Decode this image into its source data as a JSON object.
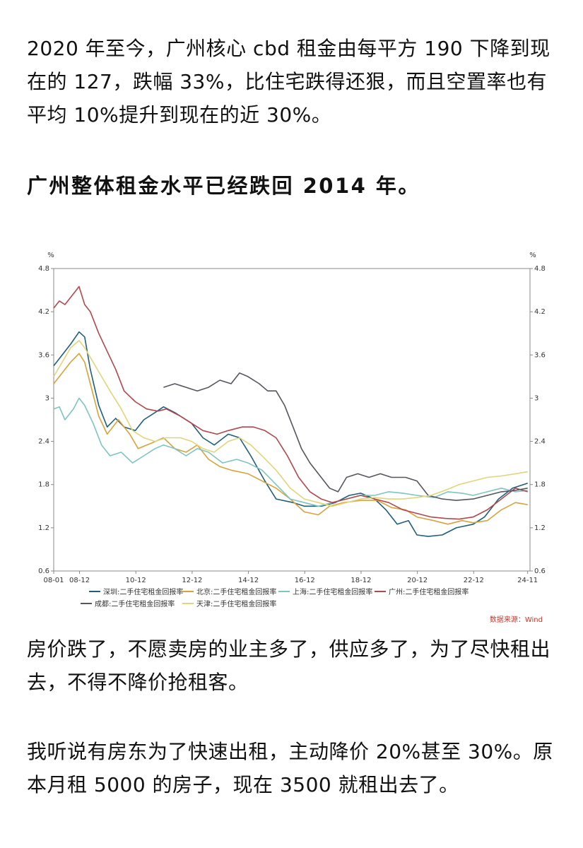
{
  "article": {
    "paragraph1": "2020 年至今，广州核心 cbd 租金由每平方 190 下降到现在的 127，跌幅 33%，比住宅跌得还狠，而且空置率也有平均 10%提升到现在的近 30%。",
    "heading": "广州整体租金水平已经跌回 2014 年。",
    "paragraph2": "房价跌了，不愿卖房的业主多了，供应多了，为了尽快租出去，不得不降价抢租客。",
    "paragraph3": "我听说有房东为了快速出租，主动降价 20%甚至 30%。原本月租 5000 的房子，现在 3500 就租出去了。"
  },
  "chart_data": {
    "type": "line",
    "y_unit_left": "%",
    "y_unit_right": "%",
    "ylim": [
      0.6,
      4.8
    ],
    "yticks": [
      "4.8",
      "4.2",
      "3.6",
      "3",
      "2.4",
      "1.8",
      "1.2",
      "0.6"
    ],
    "x_range": [
      2008.0,
      2024.917
    ],
    "xticks": [
      {
        "label": "08-01",
        "x": 2008.0
      },
      {
        "label": "08-12",
        "x": 2008.917
      },
      {
        "label": "10-12",
        "x": 2010.917
      },
      {
        "label": "12-12",
        "x": 2012.917
      },
      {
        "label": "14-12",
        "x": 2014.917
      },
      {
        "label": "16-12",
        "x": 2016.917
      },
      {
        "label": "18-12",
        "x": 2018.917
      },
      {
        "label": "20-12",
        "x": 2020.917
      },
      {
        "label": "22-12",
        "x": 2022.917
      },
      {
        "label": "24-11",
        "x": 2024.833
      }
    ],
    "grid": false,
    "legend_position": "bottom",
    "source": "数据来源：Wind",
    "series": [
      {
        "name": "深圳:二手住宅租金回报率",
        "color": "#1f5f7a",
        "points": [
          [
            2008.0,
            3.45
          ],
          [
            2008.3,
            3.6
          ],
          [
            2008.6,
            3.75
          ],
          [
            2008.9,
            3.92
          ],
          [
            2009.1,
            3.85
          ],
          [
            2009.3,
            3.4
          ],
          [
            2009.6,
            2.9
          ],
          [
            2009.9,
            2.6
          ],
          [
            2010.2,
            2.72
          ],
          [
            2010.5,
            2.6
          ],
          [
            2010.9,
            2.55
          ],
          [
            2011.2,
            2.7
          ],
          [
            2011.6,
            2.8
          ],
          [
            2011.9,
            2.88
          ],
          [
            2012.3,
            2.8
          ],
          [
            2012.9,
            2.65
          ],
          [
            2013.3,
            2.45
          ],
          [
            2013.7,
            2.35
          ],
          [
            2014.2,
            2.5
          ],
          [
            2014.6,
            2.45
          ],
          [
            2015.0,
            2.2
          ],
          [
            2015.5,
            1.85
          ],
          [
            2015.9,
            1.6
          ],
          [
            2016.5,
            1.55
          ],
          [
            2016.9,
            1.5
          ],
          [
            2017.5,
            1.5
          ],
          [
            2018.0,
            1.55
          ],
          [
            2018.5,
            1.65
          ],
          [
            2018.9,
            1.68
          ],
          [
            2019.4,
            1.6
          ],
          [
            2019.8,
            1.45
          ],
          [
            2020.2,
            1.25
          ],
          [
            2020.6,
            1.3
          ],
          [
            2020.9,
            1.1
          ],
          [
            2021.3,
            1.08
          ],
          [
            2021.8,
            1.1
          ],
          [
            2022.3,
            1.2
          ],
          [
            2022.9,
            1.25
          ],
          [
            2023.3,
            1.35
          ],
          [
            2023.8,
            1.6
          ],
          [
            2024.3,
            1.75
          ],
          [
            2024.833,
            1.82
          ]
        ]
      },
      {
        "name": "北京:二手住宅租金回报率",
        "color": "#d9a23a",
        "points": [
          [
            2008.0,
            3.2
          ],
          [
            2008.3,
            3.35
          ],
          [
            2008.6,
            3.5
          ],
          [
            2008.9,
            3.62
          ],
          [
            2009.1,
            3.5
          ],
          [
            2009.3,
            3.2
          ],
          [
            2009.6,
            2.75
          ],
          [
            2009.9,
            2.5
          ],
          [
            2010.3,
            2.7
          ],
          [
            2010.7,
            2.5
          ],
          [
            2011.0,
            2.3
          ],
          [
            2011.5,
            2.38
          ],
          [
            2011.9,
            2.45
          ],
          [
            2012.3,
            2.3
          ],
          [
            2012.7,
            2.25
          ],
          [
            2013.1,
            2.35
          ],
          [
            2013.5,
            2.15
          ],
          [
            2013.9,
            2.05
          ],
          [
            2014.3,
            2.0
          ],
          [
            2014.9,
            1.95
          ],
          [
            2015.4,
            1.85
          ],
          [
            2015.9,
            1.75
          ],
          [
            2016.4,
            1.6
          ],
          [
            2016.9,
            1.42
          ],
          [
            2017.4,
            1.38
          ],
          [
            2017.8,
            1.5
          ],
          [
            2018.3,
            1.55
          ],
          [
            2018.9,
            1.58
          ],
          [
            2019.5,
            1.58
          ],
          [
            2020.0,
            1.48
          ],
          [
            2020.5,
            1.45
          ],
          [
            2020.9,
            1.35
          ],
          [
            2021.5,
            1.3
          ],
          [
            2022.0,
            1.25
          ],
          [
            2022.5,
            1.3
          ],
          [
            2022.9,
            1.27
          ],
          [
            2023.4,
            1.3
          ],
          [
            2023.9,
            1.45
          ],
          [
            2024.4,
            1.55
          ],
          [
            2024.833,
            1.52
          ]
        ]
      },
      {
        "name": "上海:二手住宅租金回报率",
        "color": "#7ec4c0",
        "points": [
          [
            2008.0,
            2.85
          ],
          [
            2008.2,
            2.88
          ],
          [
            2008.4,
            2.7
          ],
          [
            2008.7,
            2.85
          ],
          [
            2008.9,
            3.0
          ],
          [
            2009.1,
            2.9
          ],
          [
            2009.4,
            2.65
          ],
          [
            2009.7,
            2.35
          ],
          [
            2010.0,
            2.2
          ],
          [
            2010.4,
            2.25
          ],
          [
            2010.8,
            2.1
          ],
          [
            2011.2,
            2.2
          ],
          [
            2011.6,
            2.3
          ],
          [
            2011.9,
            2.35
          ],
          [
            2012.3,
            2.3
          ],
          [
            2012.7,
            2.2
          ],
          [
            2013.1,
            2.3
          ],
          [
            2013.5,
            2.25
          ],
          [
            2014.0,
            2.1
          ],
          [
            2014.5,
            2.15
          ],
          [
            2014.9,
            2.1
          ],
          [
            2015.4,
            2.0
          ],
          [
            2015.9,
            1.8
          ],
          [
            2016.4,
            1.6
          ],
          [
            2016.9,
            1.55
          ],
          [
            2017.4,
            1.5
          ],
          [
            2017.9,
            1.55
          ],
          [
            2018.4,
            1.6
          ],
          [
            2018.9,
            1.65
          ],
          [
            2019.4,
            1.65
          ],
          [
            2019.9,
            1.7
          ],
          [
            2020.4,
            1.68
          ],
          [
            2020.9,
            1.65
          ],
          [
            2021.5,
            1.62
          ],
          [
            2022.0,
            1.7
          ],
          [
            2022.5,
            1.68
          ],
          [
            2022.9,
            1.65
          ],
          [
            2023.4,
            1.7
          ],
          [
            2023.9,
            1.75
          ],
          [
            2024.4,
            1.7
          ],
          [
            2024.833,
            1.72
          ]
        ]
      },
      {
        "name": "广州:二手住宅租金回报率",
        "color": "#b3474b",
        "points": [
          [
            2008.0,
            4.25
          ],
          [
            2008.2,
            4.35
          ],
          [
            2008.4,
            4.3
          ],
          [
            2008.7,
            4.45
          ],
          [
            2008.9,
            4.55
          ],
          [
            2009.1,
            4.3
          ],
          [
            2009.3,
            4.2
          ],
          [
            2009.6,
            3.9
          ],
          [
            2009.9,
            3.65
          ],
          [
            2010.2,
            3.4
          ],
          [
            2010.5,
            3.1
          ],
          [
            2010.9,
            2.95
          ],
          [
            2011.3,
            2.85
          ],
          [
            2011.7,
            2.82
          ],
          [
            2012.0,
            2.85
          ],
          [
            2012.5,
            2.75
          ],
          [
            2012.9,
            2.65
          ],
          [
            2013.3,
            2.55
          ],
          [
            2013.8,
            2.5
          ],
          [
            2014.2,
            2.55
          ],
          [
            2014.7,
            2.6
          ],
          [
            2015.1,
            2.6
          ],
          [
            2015.5,
            2.55
          ],
          [
            2015.9,
            2.45
          ],
          [
            2016.3,
            2.2
          ],
          [
            2016.7,
            1.9
          ],
          [
            2017.1,
            1.7
          ],
          [
            2017.5,
            1.6
          ],
          [
            2017.9,
            1.55
          ],
          [
            2018.4,
            1.6
          ],
          [
            2018.9,
            1.65
          ],
          [
            2019.4,
            1.6
          ],
          [
            2019.9,
            1.55
          ],
          [
            2020.4,
            1.45
          ],
          [
            2020.9,
            1.4
          ],
          [
            2021.4,
            1.35
          ],
          [
            2021.9,
            1.33
          ],
          [
            2022.4,
            1.32
          ],
          [
            2022.9,
            1.35
          ],
          [
            2023.4,
            1.45
          ],
          [
            2023.9,
            1.6
          ],
          [
            2024.4,
            1.75
          ],
          [
            2024.833,
            1.7
          ]
        ]
      },
      {
        "name": "成都:二手住宅租金回报率",
        "color": "#55555f",
        "points": [
          [
            2011.9,
            3.15
          ],
          [
            2012.3,
            3.2
          ],
          [
            2012.7,
            3.15
          ],
          [
            2013.1,
            3.1
          ],
          [
            2013.5,
            3.15
          ],
          [
            2013.9,
            3.25
          ],
          [
            2014.3,
            3.2
          ],
          [
            2014.6,
            3.35
          ],
          [
            2014.9,
            3.3
          ],
          [
            2015.3,
            3.2
          ],
          [
            2015.6,
            3.1
          ],
          [
            2015.9,
            3.1
          ],
          [
            2016.2,
            2.9
          ],
          [
            2016.5,
            2.6
          ],
          [
            2016.8,
            2.3
          ],
          [
            2017.1,
            2.1
          ],
          [
            2017.5,
            1.9
          ],
          [
            2017.8,
            1.75
          ],
          [
            2018.1,
            1.7
          ],
          [
            2018.4,
            1.9
          ],
          [
            2018.8,
            1.95
          ],
          [
            2019.2,
            1.9
          ],
          [
            2019.6,
            1.95
          ],
          [
            2020.0,
            1.9
          ],
          [
            2020.5,
            1.9
          ],
          [
            2020.9,
            1.85
          ],
          [
            2021.3,
            1.65
          ],
          [
            2021.8,
            1.6
          ],
          [
            2022.3,
            1.58
          ],
          [
            2022.9,
            1.6
          ],
          [
            2023.4,
            1.65
          ],
          [
            2023.9,
            1.7
          ],
          [
            2024.4,
            1.72
          ],
          [
            2024.833,
            1.75
          ]
        ]
      },
      {
        "name": "天津:二手住宅租金回报率",
        "color": "#e0d57a",
        "points": [
          [
            2008.0,
            3.3
          ],
          [
            2008.3,
            3.5
          ],
          [
            2008.6,
            3.7
          ],
          [
            2008.9,
            3.8
          ],
          [
            2009.1,
            3.7
          ],
          [
            2009.4,
            3.5
          ],
          [
            2009.7,
            3.3
          ],
          [
            2010.0,
            3.1
          ],
          [
            2010.4,
            2.85
          ],
          [
            2010.8,
            2.55
          ],
          [
            2011.2,
            2.45
          ],
          [
            2011.6,
            2.4
          ],
          [
            2012.0,
            2.45
          ],
          [
            2012.5,
            2.45
          ],
          [
            2012.9,
            2.4
          ],
          [
            2013.3,
            2.3
          ],
          [
            2013.7,
            2.25
          ],
          [
            2014.2,
            2.4
          ],
          [
            2014.6,
            2.45
          ],
          [
            2015.0,
            2.35
          ],
          [
            2015.4,
            2.2
          ],
          [
            2015.9,
            2.0
          ],
          [
            2016.4,
            1.75
          ],
          [
            2016.9,
            1.6
          ],
          [
            2017.4,
            1.55
          ],
          [
            2017.9,
            1.5
          ],
          [
            2018.4,
            1.55
          ],
          [
            2018.9,
            1.6
          ],
          [
            2019.4,
            1.62
          ],
          [
            2019.9,
            1.6
          ],
          [
            2020.4,
            1.6
          ],
          [
            2020.9,
            1.62
          ],
          [
            2021.4,
            1.65
          ],
          [
            2021.9,
            1.72
          ],
          [
            2022.4,
            1.8
          ],
          [
            2022.9,
            1.85
          ],
          [
            2023.4,
            1.9
          ],
          [
            2023.9,
            1.92
          ],
          [
            2024.4,
            1.95
          ],
          [
            2024.833,
            1.98
          ]
        ]
      }
    ]
  }
}
